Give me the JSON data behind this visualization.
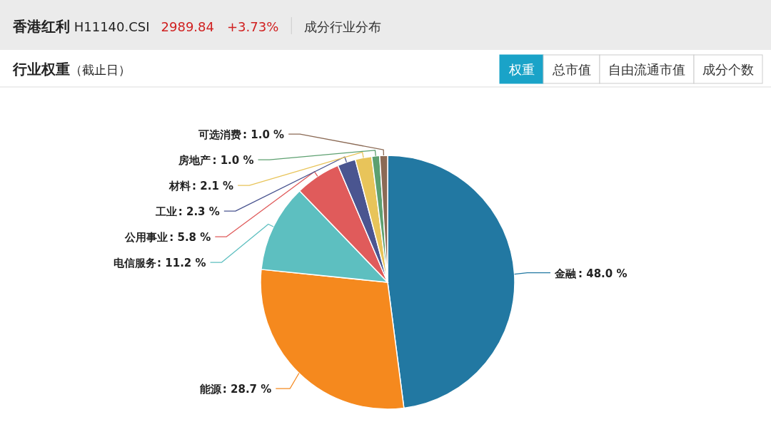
{
  "chart_data": {
    "type": "pie",
    "title": "香港红利 H11140.CSI",
    "subtitle": "行业权重（截止日）",
    "categories": [
      "金融",
      "能源",
      "电信服务",
      "公用事业",
      "工业",
      "材料",
      "房地产",
      "可选消费"
    ],
    "values": [
      48.0,
      28.7,
      11.2,
      5.8,
      2.3,
      2.1,
      1.0,
      1.0
    ],
    "colors": [
      "#2278a2",
      "#f5891e",
      "#5dbfc0",
      "#e05b5b",
      "#4a5590",
      "#e8c45a",
      "#5da070",
      "#8b6a55"
    ],
    "value_labels": [
      ": 48.0 %",
      ": 28.7 %",
      ": 11.2 %",
      ": 5.8 %",
      ": 2.3 %",
      ": 2.1 %",
      ": 1.0 %",
      ": 1.0 %"
    ],
    "annotations": [
      "2989.84",
      "+3.73%",
      "成分行业分布",
      "权重",
      "总市值",
      "自由流通市值",
      "成分个数"
    ]
  }
}
